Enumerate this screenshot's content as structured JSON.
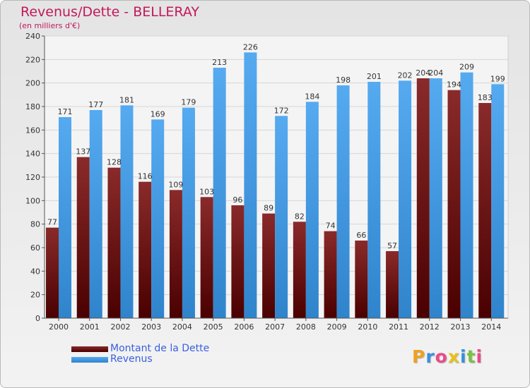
{
  "chart_data": {
    "type": "bar",
    "title": "Revenus/Dette - BELLERAY",
    "subtitle": "(en milliers d'€)",
    "categories": [
      "2000",
      "2001",
      "2002",
      "2003",
      "2004",
      "2005",
      "2006",
      "2007",
      "2008",
      "2009",
      "2010",
      "2011",
      "2012",
      "2013",
      "2014"
    ],
    "series": [
      {
        "name": "Montant de la Dette",
        "color": "#6e1212",
        "values": [
          77,
          137,
          128,
          116,
          109,
          103,
          96,
          89,
          82,
          74,
          66,
          57,
          204,
          194,
          183
        ]
      },
      {
        "name": "Revenus",
        "color": "#3f9ee6",
        "values": [
          171,
          177,
          181,
          169,
          179,
          213,
          226,
          172,
          184,
          198,
          201,
          202,
          204,
          209,
          199
        ]
      }
    ],
    "ylim": [
      0,
      240
    ],
    "yticks": [
      0,
      20,
      40,
      60,
      80,
      100,
      120,
      140,
      160,
      180,
      200,
      220,
      240
    ],
    "grid": true,
    "legend_position": "bottom-left"
  },
  "logo": {
    "letters": [
      "P",
      "r",
      "o",
      "x",
      "i",
      "t",
      "i"
    ],
    "colors": [
      "#f0a020",
      "#3a8fdc",
      "#e84c8a",
      "#e8c020",
      "#3a8fdc",
      "#7ac043",
      "#e84c8a"
    ]
  }
}
